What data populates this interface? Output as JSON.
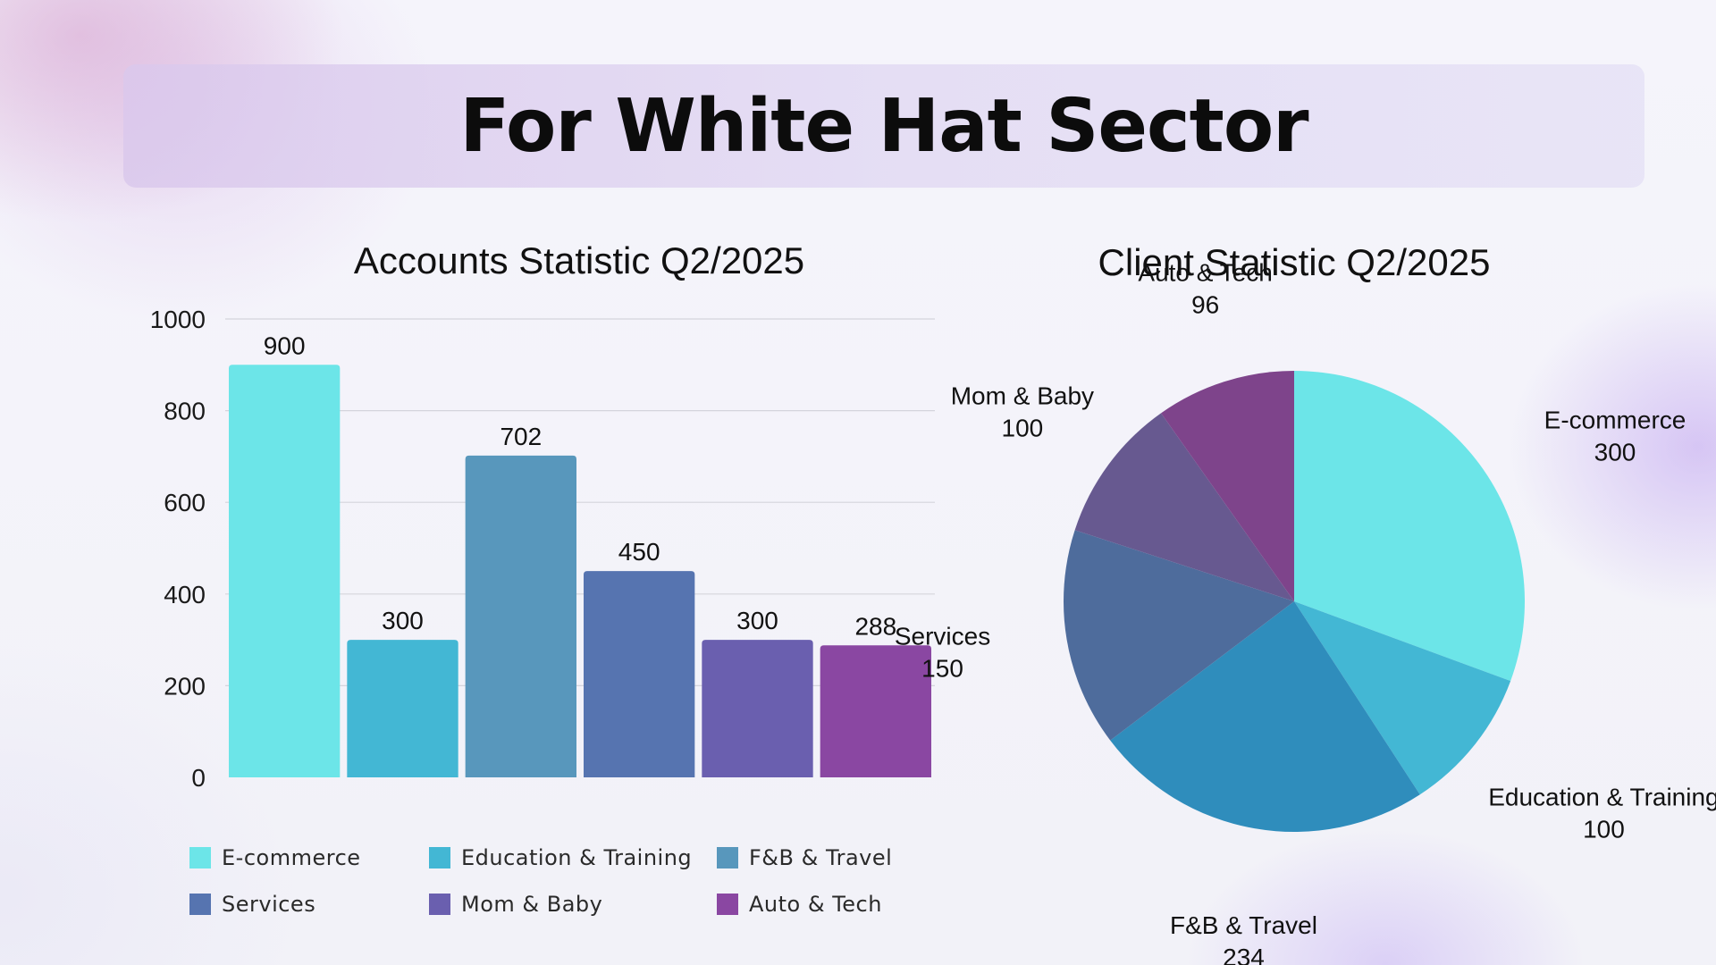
{
  "page": {
    "title": "For White Hat Sector"
  },
  "chart_data": [
    {
      "type": "bar",
      "title": "Accounts Statistic Q2/2025",
      "categories": [
        "E-commerce",
        "Education & Training",
        "F&B & Travel",
        "Services",
        "Mom & Baby",
        "Auto & Tech"
      ],
      "values": [
        900,
        300,
        702,
        450,
        300,
        288
      ],
      "value_labels": [
        "900",
        "300",
        "702",
        "450",
        "300",
        "288"
      ],
      "colors": [
        "#6ce5e8",
        "#43b7d4",
        "#5897bc",
        "#5674b0",
        "#6a5faf",
        "#8a47a2"
      ],
      "ylim": [
        0,
        1000
      ],
      "yticks": [
        0,
        200,
        400,
        600,
        800,
        1000
      ],
      "ytick_labels": [
        "0",
        "200",
        "400",
        "600",
        "800",
        "1000"
      ],
      "grid": true,
      "legend": {
        "position": "bottom",
        "labels": [
          "E-commerce",
          "Education & Training",
          "F&B & Travel",
          "Services",
          "Mom & Baby",
          "Auto & Tech"
        ]
      }
    },
    {
      "type": "pie",
      "title": "Client Statistic Q2/2025",
      "labels": [
        "E-commerce",
        "Education & Training",
        "F&B & Travel",
        "Services",
        "Mom & Baby",
        "Auto & Tech"
      ],
      "values": [
        300,
        100,
        234,
        150,
        100,
        96
      ],
      "value_labels": [
        "300",
        "100",
        "234",
        "150",
        "100",
        "96"
      ],
      "colors": [
        "#6ce5e8",
        "#43b7d4",
        "#2f8dbc",
        "#4e6c9c",
        "#675990",
        "#7e448b"
      ]
    }
  ]
}
